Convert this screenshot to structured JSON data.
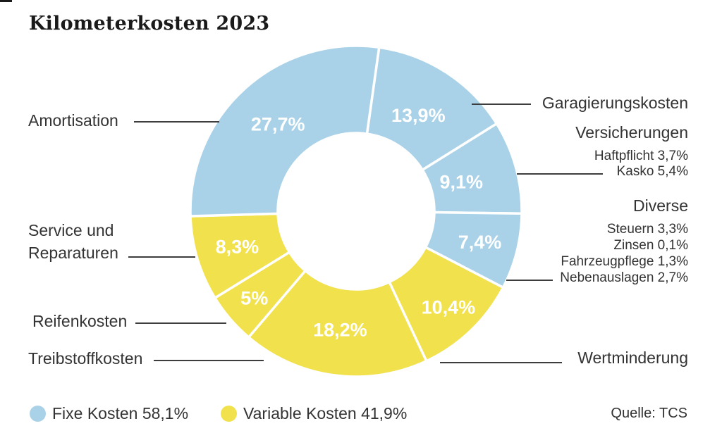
{
  "title": "Kilometerkosten 2023",
  "source": "Quelle: TCS",
  "colors": {
    "fixed_blue": "#a9d2e8",
    "variable_yellow": "#f1e14c",
    "segment_label_text": "#ffffff",
    "leader_line": "#3d3d3d",
    "text": "#333333"
  },
  "legend": {
    "fixed": {
      "label": "Fixe Kosten 58,1%"
    },
    "variable": {
      "label": "Variable Kosten 41,9%"
    }
  },
  "callouts": {
    "amortisation": "Amortisation",
    "service": "Service und Reparaturen",
    "reifenkosten": "Reifenkosten",
    "treibstoffkosten": "Treibstoffkosten",
    "garagierungskosten": "Garagierungskosten",
    "versicherungen": {
      "heading": "Versicherungen",
      "items": [
        "Haftpflicht 3,7%",
        "Kasko 5,4%"
      ]
    },
    "diverse": {
      "heading": "Diverse",
      "items": [
        "Steuern 3,3%",
        "Zinsen 0,1%",
        "Fahrzeugpflege 1,3%",
        "Nebenauslagen 2,7%"
      ]
    },
    "wertminderung": "Wertminderung"
  },
  "chart_data": {
    "type": "pie",
    "subtype": "donut",
    "title": "Kilometerkosten 2023",
    "source": "Quelle: TCS",
    "clockwise": true,
    "start_angle_deg_from_top": 8,
    "legend_position": "bottom",
    "groups": [
      {
        "name": "Fixe Kosten",
        "share": 58.1,
        "display": "Fixe Kosten 58,1%",
        "color": "#a9d2e8"
      },
      {
        "name": "Variable Kosten",
        "share": 41.9,
        "display": "Variable Kosten 41,9%",
        "color": "#f1e14c"
      }
    ],
    "segments": [
      {
        "label": "Garagierungskosten",
        "value": 13.9,
        "display": "13,9%",
        "group": "Fixe Kosten"
      },
      {
        "label": "Versicherungen",
        "value": 9.1,
        "display": "9,1%",
        "group": "Fixe Kosten",
        "breakdown": [
          {
            "label": "Haftpflicht",
            "value": 3.7,
            "display": "3,7%"
          },
          {
            "label": "Kasko",
            "value": 5.4,
            "display": "5,4%"
          }
        ]
      },
      {
        "label": "Diverse",
        "value": 7.4,
        "display": "7,4%",
        "group": "Fixe Kosten",
        "breakdown": [
          {
            "label": "Steuern",
            "value": 3.3,
            "display": "3,3%"
          },
          {
            "label": "Zinsen",
            "value": 0.1,
            "display": "0,1%"
          },
          {
            "label": "Fahrzeugpflege",
            "value": 1.3,
            "display": "1,3%"
          },
          {
            "label": "Nebenauslagen",
            "value": 2.7,
            "display": "2,7%"
          }
        ]
      },
      {
        "label": "Wertminderung",
        "value": 10.4,
        "display": "10,4%",
        "group": "Variable Kosten"
      },
      {
        "label": "Treibstoffkosten",
        "value": 18.2,
        "display": "18,2%",
        "group": "Variable Kosten"
      },
      {
        "label": "Reifenkosten",
        "value": 5,
        "display": "5%",
        "group": "Variable Kosten"
      },
      {
        "label": "Service und Reparaturen",
        "value": 8.3,
        "display": "8,3%",
        "group": "Variable Kosten"
      },
      {
        "label": "Amortisation",
        "value": 27.7,
        "display": "27,7%",
        "group": "Fixe Kosten"
      }
    ]
  }
}
